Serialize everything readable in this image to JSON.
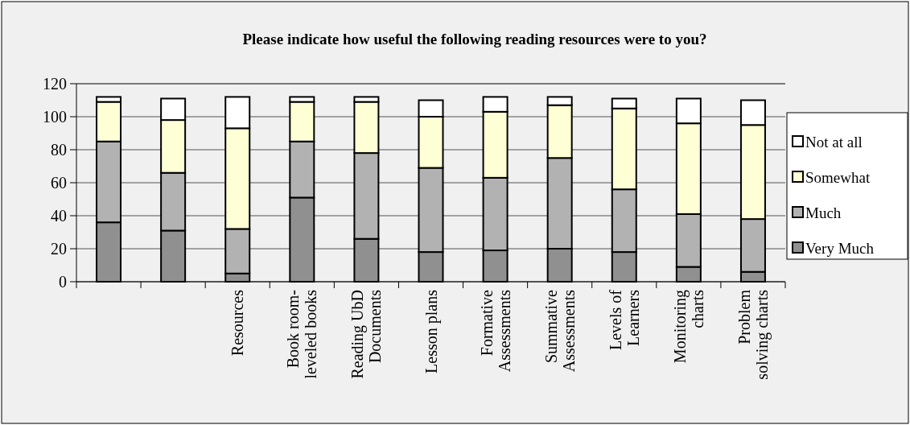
{
  "chart_data": {
    "type": "bar",
    "title": "Please indicate how useful the following reading resources were to you?",
    "categories": [
      null,
      null,
      "Resources",
      "Book room-leveled books",
      "Reading UbD Documents",
      "Lesson plans",
      "Formative Assessments",
      "Summative Assessments",
      "Levels of Learners",
      "Monitoring charts",
      "Problem solving charts"
    ],
    "stacked": true,
    "series": [
      {
        "name": "Very Much",
        "color": "#909090",
        "values": [
          36,
          31,
          5,
          51,
          26,
          18,
          19,
          20,
          18,
          9,
          6
        ]
      },
      {
        "name": "Much",
        "color": "#b2b2b2",
        "values": [
          49,
          35,
          27,
          34,
          52,
          51,
          44,
          55,
          38,
          32,
          32
        ]
      },
      {
        "name": "Somewhat",
        "color": "#ffffd5",
        "values": [
          24,
          32,
          61,
          24,
          31,
          31,
          40,
          32,
          49,
          55,
          57
        ]
      },
      {
        "name": "Not at all",
        "color": "#ffffff",
        "values": [
          3,
          13,
          19,
          3,
          3,
          10,
          9,
          5,
          6,
          15,
          15
        ]
      }
    ],
    "ylim": [
      0,
      120
    ],
    "yticks": [
      0,
      20,
      40,
      60,
      80,
      100,
      120
    ],
    "grid": "y",
    "legend": "right"
  }
}
